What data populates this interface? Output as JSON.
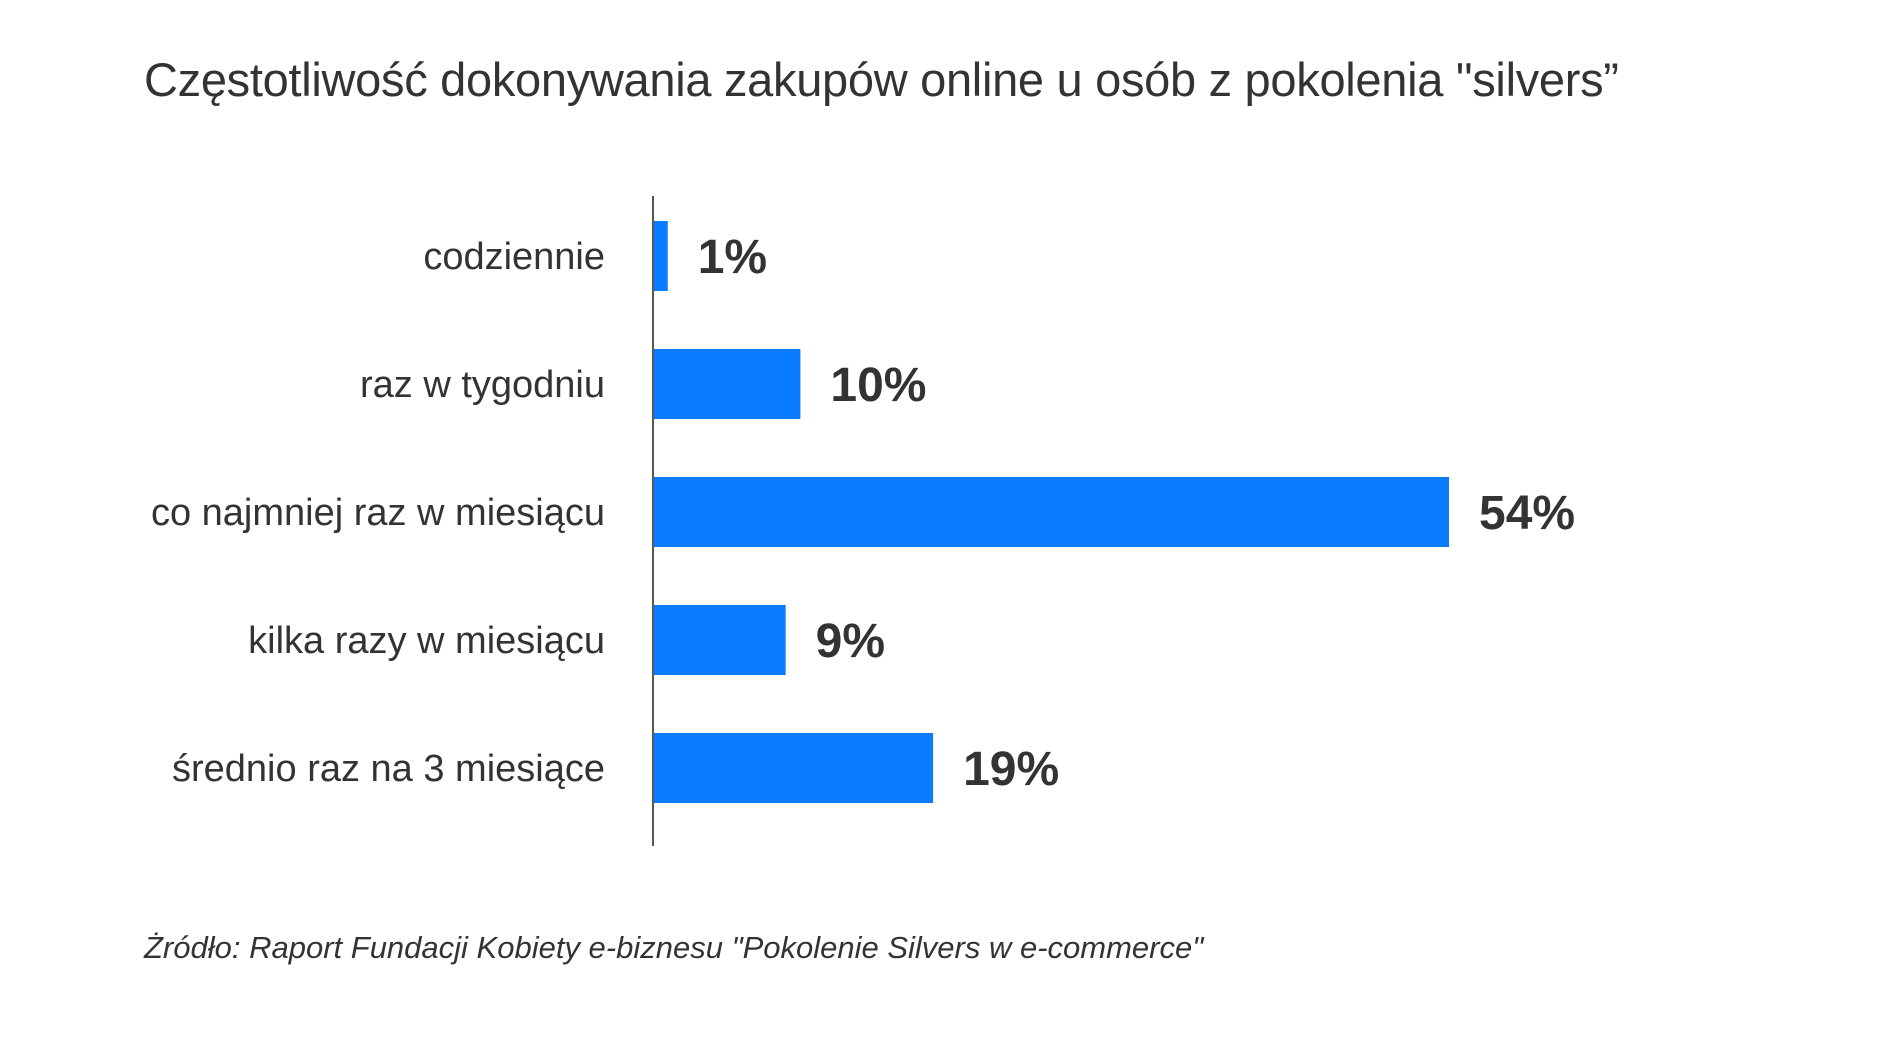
{
  "chart_data": {
    "type": "bar",
    "orientation": "horizontal",
    "title": "Częstotliwość dokonywania zakupów online u osób z pokolenia \"silvers”",
    "categories": [
      "codziennie",
      "raz w tygodniu",
      "co najmniej raz w miesiącu",
      "kilka razy w miesiącu",
      "średnio raz na 3 miesiące"
    ],
    "values": [
      1,
      10,
      54,
      9,
      19
    ],
    "value_labels": [
      "1%",
      "10%",
      "54%",
      "9%",
      "19%"
    ],
    "unit": "%",
    "xlim": [
      0,
      54
    ],
    "grid": false,
    "legend": "none",
    "bar_color": "#0a7cff"
  },
  "source": "Żródło: Raport Fundacji Kobiety e-biznesu \"Pokolenie Silvers w e-commerce\""
}
